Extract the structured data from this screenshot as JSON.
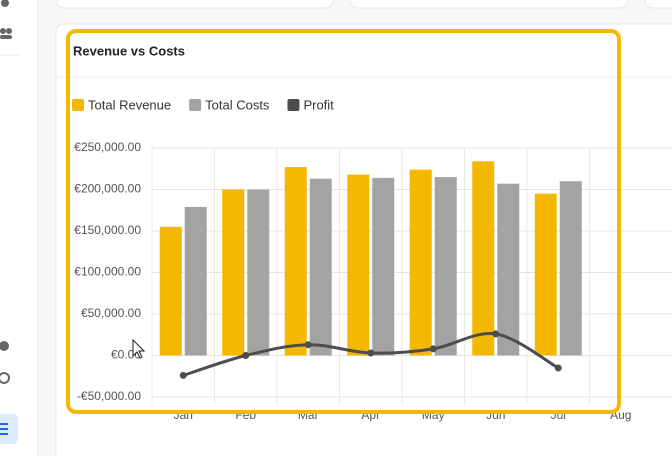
{
  "chart_data": {
    "type": "bar-line",
    "title": "Revenue vs Costs",
    "categories": [
      "Jan",
      "Feb",
      "Mar",
      "Apr",
      "May",
      "Jun",
      "Jul",
      "Aug"
    ],
    "series": [
      {
        "name": "Total Revenue",
        "type": "bar",
        "color": "#f5b800",
        "values": [
          155000,
          200000,
          227000,
          218000,
          224000,
          234000,
          195000,
          null
        ]
      },
      {
        "name": "Total Costs",
        "type": "bar",
        "color": "#a3a3a3",
        "values": [
          179000,
          200000,
          213000,
          214000,
          215000,
          207000,
          210000,
          null
        ]
      },
      {
        "name": "Profit",
        "type": "line",
        "color": "#4d4d4d",
        "values": [
          -24000,
          0,
          13000,
          3000,
          8000,
          26000,
          -15000,
          null
        ]
      }
    ],
    "ylim": [
      -50000,
      250000
    ],
    "yticks": [
      {
        "value": -50000,
        "label": "-€50,000.00"
      },
      {
        "value": 0,
        "label": "€0.00"
      },
      {
        "value": 50000,
        "label": "€50,000.00"
      },
      {
        "value": 100000,
        "label": "€100,000.00"
      },
      {
        "value": 150000,
        "label": "€150,000.00"
      },
      {
        "value": 200000,
        "label": "€200,000.00"
      },
      {
        "value": 250000,
        "label": "€250,000.00"
      }
    ],
    "grid": true,
    "legend": "top-left"
  }
}
